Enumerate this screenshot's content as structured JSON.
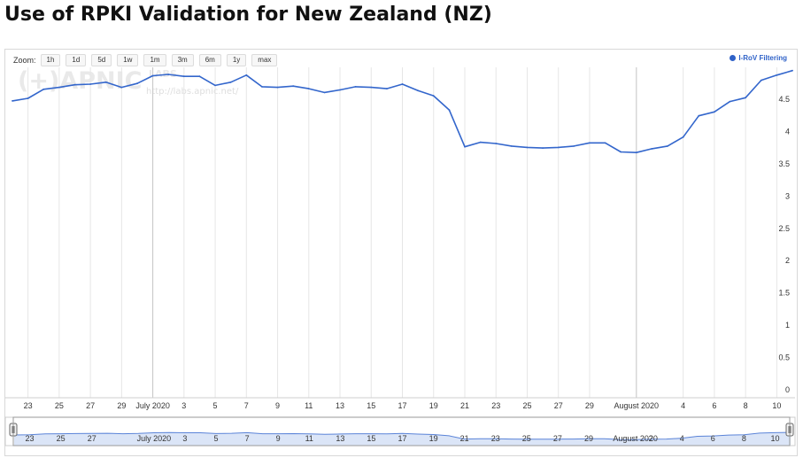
{
  "page": {
    "title": "Use of RPKI Validation for New Zealand (NZ)"
  },
  "zoom": {
    "label": "Zoom:",
    "buttons": [
      "1h",
      "1d",
      "5d",
      "1w",
      "1m",
      "3m",
      "6m",
      "1y",
      "max"
    ]
  },
  "watermark": {
    "logo": "(+)APNIC",
    "labs": "LABS",
    "url": "http://labs.apnic.net/"
  },
  "colors": {
    "line": "#3366cc",
    "grid": "#e6e6e6",
    "month_line": "#c8c8c8"
  },
  "chart_data": {
    "type": "line",
    "title": "Use of RPKI Validation for New Zealand (NZ)",
    "series": [
      {
        "name": "I-RoV Filtering",
        "color": "#3366cc",
        "values": [
          4.46,
          4.5,
          4.64,
          4.67,
          4.71,
          4.72,
          4.75,
          4.67,
          4.73,
          4.85,
          4.87,
          4.84,
          4.84,
          4.7,
          4.75,
          4.86,
          4.68,
          4.67,
          4.69,
          4.65,
          4.59,
          4.63,
          4.68,
          4.67,
          4.65,
          4.72,
          4.62,
          4.54,
          4.32,
          3.75,
          3.82,
          3.8,
          3.76,
          3.74,
          3.73,
          3.74,
          3.76,
          3.81,
          3.81,
          3.67,
          3.66,
          3.72,
          3.76,
          3.9,
          4.23,
          4.29,
          4.45,
          4.51,
          4.78,
          4.86,
          4.93
        ]
      }
    ],
    "x_start": "2020-06-22",
    "x_interval": "1 day",
    "ylim": [
      0,
      5
    ],
    "y_ticks": [
      0,
      0.5,
      1,
      1.5,
      2,
      2.5,
      3,
      3.5,
      4,
      4.5
    ],
    "x_tick_labels": [
      "23",
      "25",
      "27",
      "29",
      "July 2020",
      "3",
      "5",
      "7",
      "9",
      "11",
      "13",
      "15",
      "17",
      "19",
      "21",
      "23",
      "25",
      "27",
      "29",
      "August 2020",
      "4",
      "6",
      "8",
      "10"
    ],
    "x_tick_days": [
      1,
      3,
      5,
      7,
      9,
      11,
      13,
      15,
      17,
      19,
      21,
      23,
      25,
      27,
      29,
      31,
      33,
      35,
      37,
      40,
      43,
      45,
      47,
      49
    ],
    "month_lines_days": [
      9,
      40
    ],
    "navigator_tick_labels": [
      "23",
      "25",
      "27",
      "July 2020",
      "3",
      "5",
      "7",
      "9",
      "11",
      "13",
      "15",
      "17",
      "19",
      "21",
      "23",
      "25",
      "27",
      "29",
      "August 2020",
      "2",
      "4",
      "6",
      "8",
      "10"
    ],
    "navigator_tick_days": [
      1,
      3,
      5,
      9,
      11,
      13,
      15,
      17,
      19,
      21,
      23,
      25,
      27,
      29,
      31,
      33,
      35,
      37,
      40,
      41,
      43,
      45,
      47,
      49
    ],
    "legend_position": "top-right",
    "grid": true
  }
}
